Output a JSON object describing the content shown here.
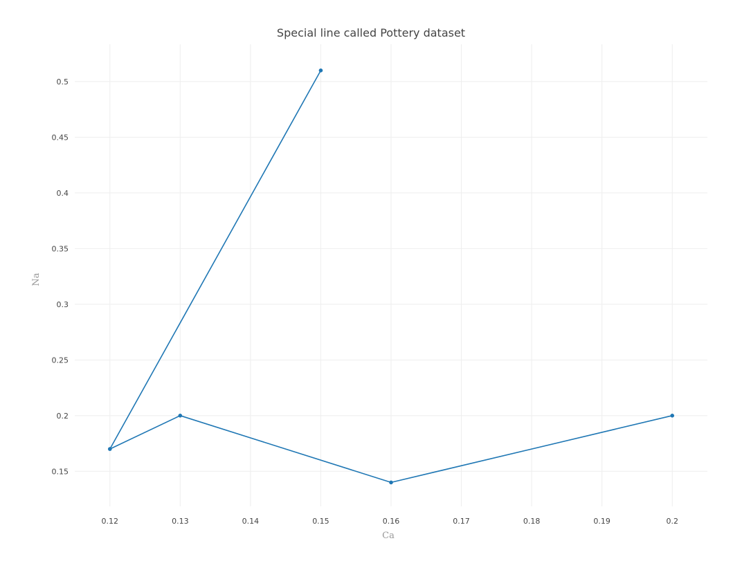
{
  "chart_data": {
    "type": "line",
    "title": "Special line called Pottery dataset",
    "xlabel": "Ca",
    "ylabel": "Na",
    "xlim": [
      0.115,
      0.205
    ],
    "ylim": [
      0.1185,
      0.5335
    ],
    "x_ticks": [
      0.12,
      0.13,
      0.14,
      0.15,
      0.16,
      0.17,
      0.18,
      0.19,
      0.2
    ],
    "x_tick_labels": [
      "0.12",
      "0.13",
      "0.14",
      "0.15",
      "0.16",
      "0.17",
      "0.18",
      "0.19",
      "0.2"
    ],
    "y_ticks": [
      0.15,
      0.2,
      0.25,
      0.3,
      0.35,
      0.4,
      0.45,
      0.5
    ],
    "y_tick_labels": [
      "0.15",
      "0.2",
      "0.25",
      "0.3",
      "0.35",
      "0.4",
      "0.45",
      "0.5"
    ],
    "grid": true,
    "series": [
      {
        "name": "Pottery",
        "color": "#1f77b4",
        "x": [
          0.15,
          0.12,
          0.13,
          0.16,
          0.2
        ],
        "y": [
          0.51,
          0.17,
          0.2,
          0.14,
          0.2
        ]
      }
    ]
  }
}
